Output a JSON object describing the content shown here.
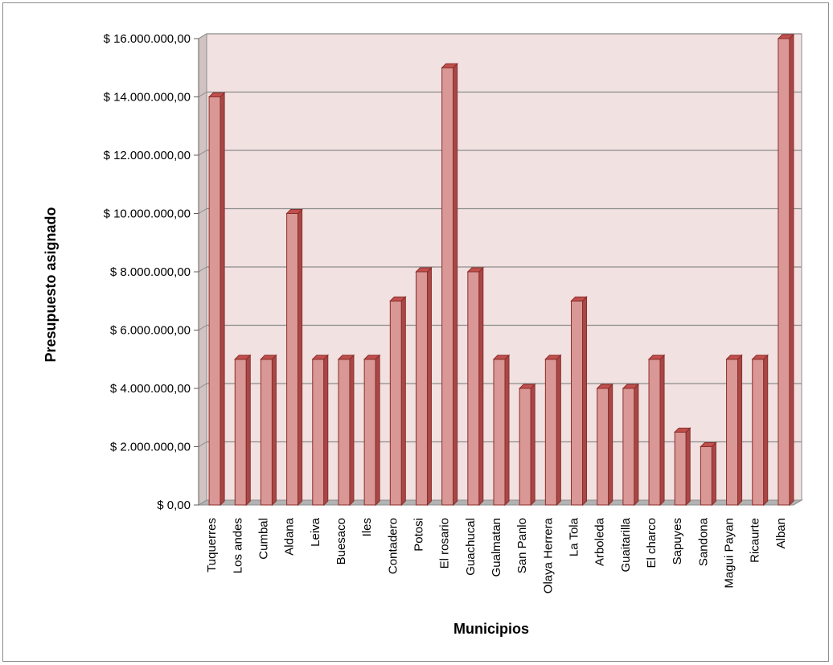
{
  "chart_data": {
    "type": "bar",
    "title": "",
    "xlabel": "Municipios",
    "ylabel": "Presupuesto asignado",
    "ylim": [
      0,
      16000000
    ],
    "y_tick_values": [
      0,
      2000000,
      4000000,
      6000000,
      8000000,
      10000000,
      12000000,
      14000000,
      16000000
    ],
    "y_tick_labels": [
      "$ 0,00",
      "$ 2.000.000,00",
      "$ 4.000.000,00",
      "$ 6.000.000,00",
      "$ 8.000.000,00",
      "$ 10.000.000,00",
      "$ 12.000.000,00",
      "$ 14.000.000,00",
      "$ 16.000.000,00"
    ],
    "categories": [
      "Tuquerres",
      "Los andes",
      "Cumbal",
      "Aldana",
      "Leiva",
      "Buesaco",
      "Iles",
      "Contadero",
      "Potosi",
      "El rosario",
      "Guachucal",
      "Gualmatan",
      "San Panlo",
      "Olaya Herrera",
      "La Tola",
      "Arboleda",
      "Guaitarilla",
      "El charco",
      "Sapuyes",
      "Sandona",
      "Magui Payan",
      "Ricaurte",
      "Alban"
    ],
    "values": [
      14000000,
      5000000,
      5000000,
      10000000,
      5000000,
      5000000,
      5000000,
      7000000,
      8000000,
      15000000,
      8000000,
      5000000,
      4000000,
      5000000,
      7000000,
      4000000,
      4000000,
      5000000,
      2500000,
      2000000,
      5000000,
      5000000,
      16000000
    ],
    "grid": true,
    "legend": "none",
    "colors": {
      "bar_front": "#d99795",
      "bar_side": "#a84846",
      "bar_top": "#c0504d",
      "bar_edge": "#8b2d2b",
      "plot_wall": "#f2e1e1",
      "wall_side": "#d2c3c3",
      "floor": "#b3b3b3",
      "grid": "#8c8c8c"
    }
  }
}
